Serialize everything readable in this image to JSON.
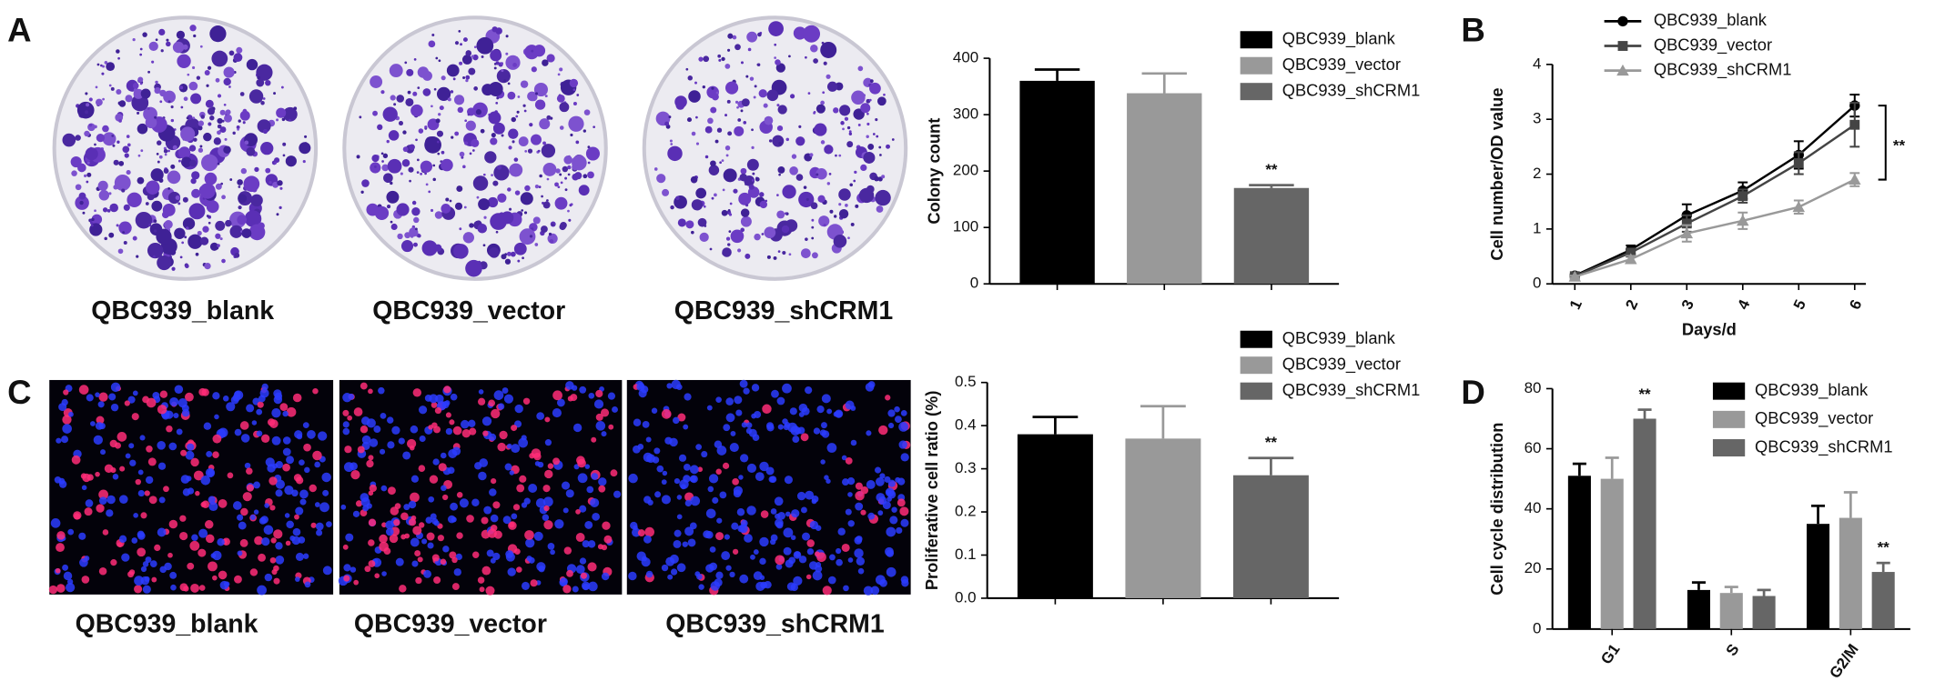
{
  "panel_labels": [
    "A",
    "B",
    "C",
    "D"
  ],
  "image_labels": {
    "A": [
      "QBC939_blank",
      "QBC939_vector",
      "QBC939_shCRM1"
    ],
    "C": [
      "QBC939_blank",
      "QBC939_vector",
      "QBC939_shCRM1"
    ]
  },
  "chart_data": [
    {
      "type": "bar",
      "ylabel": "Colony count",
      "categories": [
        null
      ],
      "ylim": [
        0,
        400
      ],
      "yticks": [
        0,
        100,
        200,
        300,
        400
      ],
      "series": [
        {
          "name": "QBC939_blank",
          "color": "#000000",
          "values": [
            360
          ],
          "errors": [
            20
          ]
        },
        {
          "name": "QBC939_vector",
          "color": "#999999",
          "values": [
            338
          ],
          "errors": [
            35
          ]
        },
        {
          "name": "QBC939_shCRM1",
          "color": "#666666",
          "values": [
            170
          ],
          "errors": [
            5
          ],
          "significance": [
            "**"
          ]
        }
      ]
    },
    {
      "type": "line",
      "xlabel": "Days/d",
      "ylabel": "Cell number/OD value",
      "x": [
        1,
        2,
        3,
        4,
        5,
        6
      ],
      "xlim": [
        0.6,
        6.2
      ],
      "xticks": [
        1,
        2,
        3,
        4,
        5,
        6
      ],
      "ylim": [
        0,
        4
      ],
      "yticks": [
        0,
        1,
        2,
        3,
        4
      ],
      "significance": "**",
      "series": [
        {
          "name": "QBC939_blank",
          "color": "#000000",
          "marker": "circle",
          "values": [
            0.15,
            0.62,
            1.25,
            1.7,
            2.35,
            3.25
          ],
          "errors": [
            0.03,
            0.08,
            0.2,
            0.15,
            0.25,
            0.2
          ]
        },
        {
          "name": "QBC939_vector",
          "color": "#444444",
          "marker": "square",
          "values": [
            0.14,
            0.57,
            1.1,
            1.6,
            2.2,
            2.9
          ],
          "errors": [
            0.03,
            0.07,
            0.15,
            0.12,
            0.2,
            0.4
          ]
        },
        {
          "name": "QBC939_shCRM1",
          "color": "#999999",
          "marker": "triangle",
          "values": [
            0.13,
            0.45,
            0.92,
            1.15,
            1.4,
            1.9
          ],
          "errors": [
            0.02,
            0.06,
            0.15,
            0.15,
            0.12,
            0.12
          ]
        }
      ]
    },
    {
      "type": "bar",
      "ylabel": "Proliferative cell ratio (%)",
      "categories": [
        null
      ],
      "ylim": [
        0,
        0.5
      ],
      "yticks": [
        {
          "value": 0,
          "label": "0.0"
        },
        0.1,
        0.2,
        0.3,
        0.4,
        0.5
      ],
      "series": [
        {
          "name": "QBC939_blank",
          "color": "#000000",
          "values": [
            0.38
          ],
          "errors": [
            0.04
          ]
        },
        {
          "name": "QBC939_vector",
          "color": "#999999",
          "values": [
            0.37
          ],
          "errors": [
            0.075
          ]
        },
        {
          "name": "QBC939_shCRM1",
          "color": "#666666",
          "values": [
            0.285
          ],
          "errors": [
            0.04
          ],
          "significance": [
            "**"
          ]
        }
      ]
    },
    {
      "type": "bar",
      "ylabel": "Cell cycle distribution",
      "categories": [
        "G1",
        "S",
        "G2/M"
      ],
      "ylim": [
        0,
        80
      ],
      "yticks": [
        0,
        20,
        40,
        60,
        80
      ],
      "series": [
        {
          "name": "QBC939_blank",
          "color": "#000000",
          "values": [
            51,
            13,
            35
          ],
          "errors": [
            4,
            2.5,
            6
          ]
        },
        {
          "name": "QBC939_vector",
          "color": "#999999",
          "values": [
            50,
            12,
            37
          ],
          "errors": [
            7,
            2,
            8.5
          ]
        },
        {
          "name": "QBC939_shCRM1",
          "color": "#666666",
          "values": [
            70,
            11,
            19
          ],
          "errors": [
            3,
            2,
            3
          ],
          "significance": [
            "**",
            null,
            "**"
          ]
        }
      ]
    }
  ]
}
